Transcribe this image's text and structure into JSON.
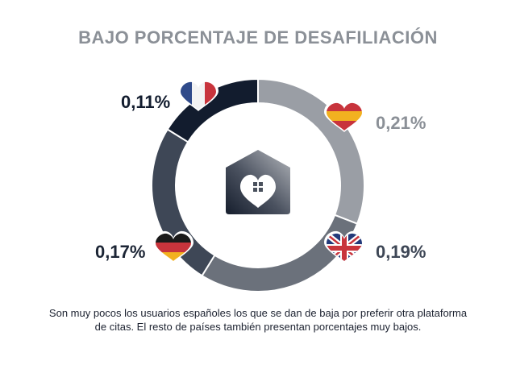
{
  "title": "BAJO PORCENTAJE DE DESAFILIACIÓN",
  "chart_data": {
    "type": "pie",
    "style": "donut",
    "title": "BAJO PORCENTAJE DE DESAFILIACIÓN",
    "unit": "%",
    "slices": [
      {
        "country": "España",
        "flag": "spain-flag",
        "value": 0.21,
        "label": "0,21%",
        "color": "#9a9ea5"
      },
      {
        "country": "Reino Unido",
        "flag": "uk-flag",
        "value": 0.19,
        "label": "0,19%",
        "color": "#6b717b"
      },
      {
        "country": "Alemania",
        "flag": "germany-flag",
        "value": 0.17,
        "label": "0,17%",
        "color": "#3e4756"
      },
      {
        "country": "Francia",
        "flag": "france-flag",
        "value": 0.11,
        "label": "0,11%",
        "color": "#121c2e"
      }
    ],
    "center_icon": "house-heart-icon"
  },
  "caption": "Son muy pocos los usuarios españoles los que se dan de baja por preferir otra plataforma de citas. El resto de países también presentan porcentajes muy bajos."
}
